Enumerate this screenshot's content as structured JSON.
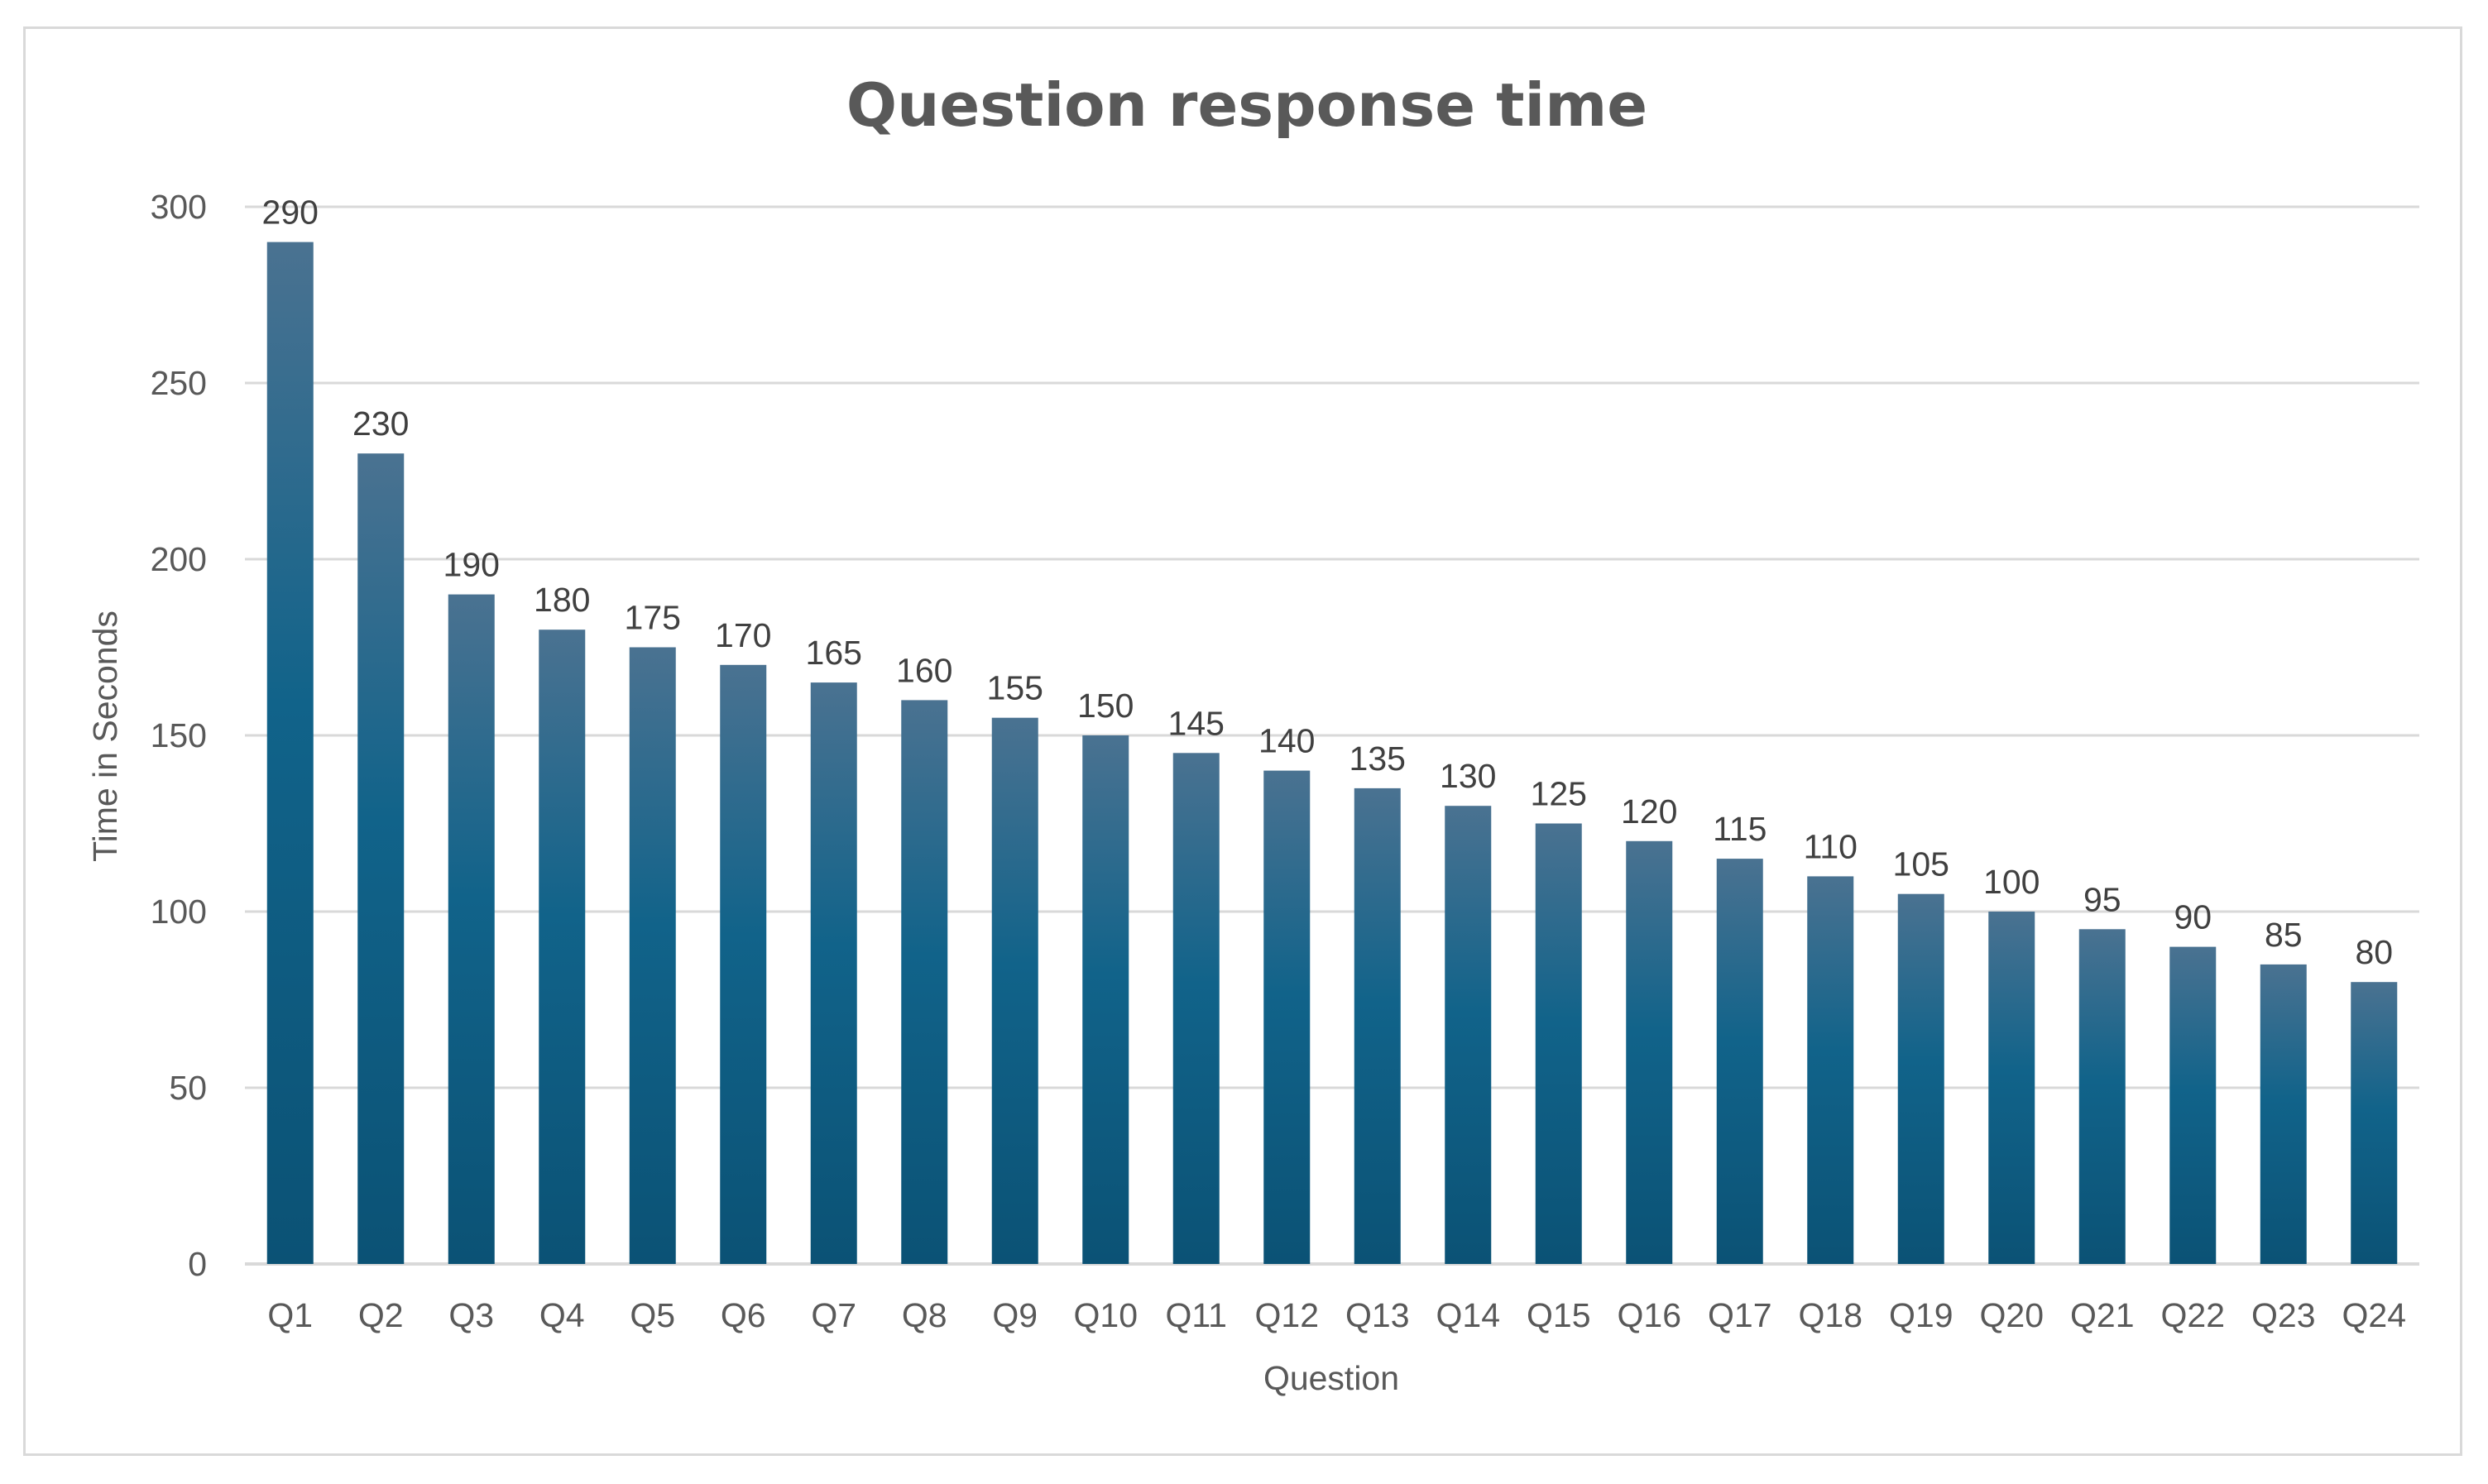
{
  "chart_data": {
    "type": "bar",
    "title": "Question response time",
    "xlabel": "Question",
    "ylabel": "Time in Seconds",
    "ylim": [
      0,
      300
    ],
    "yticks": [
      0,
      50,
      100,
      150,
      200,
      250,
      300
    ],
    "grid": true,
    "legend": "none",
    "categories": [
      "Q1",
      "Q2",
      "Q3",
      "Q4",
      "Q5",
      "Q6",
      "Q7",
      "Q8",
      "Q9",
      "Q10",
      "Q11",
      "Q12",
      "Q13",
      "Q14",
      "Q15",
      "Q16",
      "Q17",
      "Q18",
      "Q19",
      "Q20",
      "Q21",
      "Q22",
      "Q23",
      "Q24"
    ],
    "values": [
      290,
      230,
      190,
      180,
      175,
      170,
      165,
      160,
      155,
      150,
      145,
      140,
      135,
      130,
      125,
      120,
      115,
      110,
      105,
      100,
      95,
      90,
      85,
      80
    ],
    "colors": {
      "bar_top": "#4a7291",
      "bar_bottom": "#0b5275",
      "grid": "#d9d9d9",
      "text": "#595959"
    }
  }
}
